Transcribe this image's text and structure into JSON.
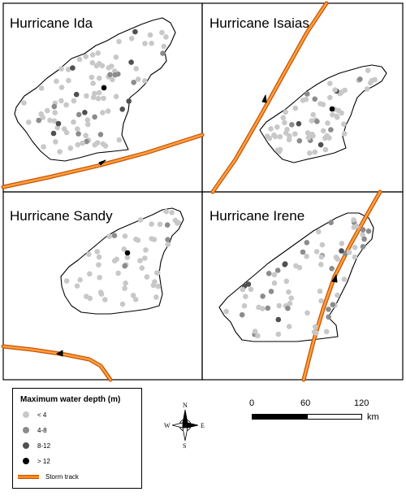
{
  "panels": [
    {
      "title": "Hurricane Ida"
    },
    {
      "title": "Hurricane Isaias"
    },
    {
      "title": "Hurricane Sandy"
    },
    {
      "title": "Hurricane Irene"
    }
  ],
  "legend": {
    "title": "Maximum water depth (m)",
    "items": [
      {
        "label": "< 4",
        "color": "#c8c8c8"
      },
      {
        "label": "4-8",
        "color": "#8c8c8c"
      },
      {
        "label": "8-12",
        "color": "#505050"
      },
      {
        "label": "> 12",
        "color": "#000000"
      },
      {
        "label": "Storm track",
        "color": "#ff8a1f"
      }
    ]
  },
  "compass": {
    "n": "N",
    "s": "S",
    "e": "E",
    "w": "W"
  },
  "scale": {
    "ticks": [
      "0",
      "60",
      "120"
    ],
    "unit": "km"
  }
}
